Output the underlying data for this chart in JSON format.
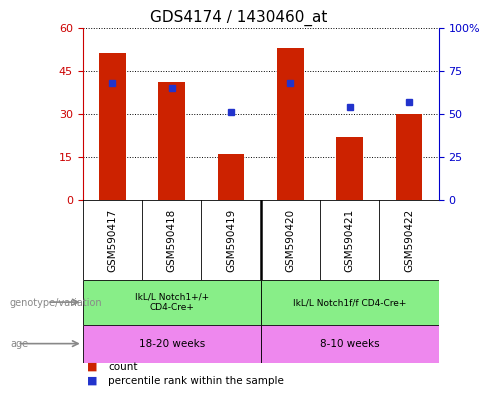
{
  "title": "GDS4174 / 1430460_at",
  "samples": [
    "GSM590417",
    "GSM590418",
    "GSM590419",
    "GSM590420",
    "GSM590421",
    "GSM590422"
  ],
  "counts": [
    51,
    41,
    16,
    53,
    22,
    30
  ],
  "percentile_ranks": [
    68,
    65,
    51,
    68,
    54,
    57
  ],
  "bar_color": "#cc2200",
  "dot_color": "#2233cc",
  "left_yticks": [
    0,
    15,
    30,
    45,
    60
  ],
  "left_yticklabels": [
    "0",
    "15",
    "30",
    "45",
    "60"
  ],
  "right_ytick_vals": [
    0,
    25,
    50,
    75,
    100
  ],
  "right_ytick_labels": [
    "0",
    "25",
    "50",
    "75",
    "100%"
  ],
  "ylim_left": [
    0,
    60
  ],
  "ylim_right": [
    0,
    100
  ],
  "genotype_labels": [
    "IkL/L Notch1+/+\nCD4-Cre+",
    "IkL/L Notch1f/f CD4-Cre+"
  ],
  "genotype_ranges": [
    [
      0,
      3
    ],
    [
      3,
      6
    ]
  ],
  "genotype_color": "#88ee88",
  "age_labels": [
    "18-20 weeks",
    "8-10 weeks"
  ],
  "age_ranges": [
    [
      0,
      3
    ],
    [
      3,
      6
    ]
  ],
  "age_color": "#ee88ee",
  "sample_bg": "#cccccc",
  "genotype_row_label": "genotype/variation",
  "age_row_label": "age",
  "legend_count_label": "count",
  "legend_pct_label": "percentile rank within the sample",
  "left_axis_color": "#cc0000",
  "right_axis_color": "#0000cc",
  "grid_color": "#000000"
}
